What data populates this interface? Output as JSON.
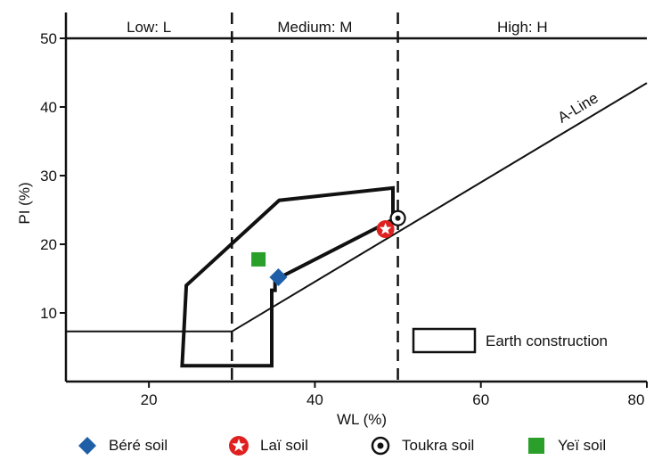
{
  "chart_data": {
    "type": "scatter",
    "title": "",
    "xlabel": "WL (%)",
    "ylabel": "PI (%)",
    "xlim": [
      10,
      80
    ],
    "ylim": [
      0,
      50
    ],
    "x_ticks": [
      "20",
      "40",
      "60",
      "80"
    ],
    "y_ticks": [
      "10",
      "20",
      "30",
      "40",
      "50"
    ],
    "zones": [
      {
        "label": "Low: L",
        "x_range": [
          10,
          30
        ]
      },
      {
        "label": "Medium: M",
        "x_range": [
          30,
          50
        ]
      },
      {
        "label": "High: H",
        "x_range": [
          50,
          80
        ]
      }
    ],
    "zone_boundaries": [
      30,
      50
    ],
    "a_line": {
      "label": "A-Line",
      "points": [
        [
          10,
          7.3
        ],
        [
          30,
          7.3
        ],
        [
          80,
          43.5
        ]
      ]
    },
    "earth_construction": {
      "label": "Earth construction",
      "polygon": [
        [
          24.5,
          14
        ],
        [
          35.7,
          26.4
        ],
        [
          49.4,
          28.2
        ],
        [
          49.4,
          23.6
        ],
        [
          35.2,
          14.8
        ],
        [
          35.2,
          13.3
        ],
        [
          34.8,
          13.3
        ],
        [
          34.8,
          2.3
        ],
        [
          24,
          2.3
        ]
      ]
    },
    "series": [
      {
        "name": "Béré soil",
        "x": [
          35.6
        ],
        "y": [
          15.2
        ],
        "marker": "diamond",
        "color": "#1f5fa8"
      },
      {
        "name": "Laï soil",
        "x": [
          48.5
        ],
        "y": [
          22.2
        ],
        "marker": "star",
        "color": "#e02020"
      },
      {
        "name": "Toukra soil",
        "x": [
          50
        ],
        "y": [
          23.8
        ],
        "marker": "dotted-circle",
        "color": "#111111"
      },
      {
        "name": "Yeï soil",
        "x": [
          33.2
        ],
        "y": [
          17.8
        ],
        "marker": "square",
        "color": "#2aa02a"
      }
    ],
    "legend_position": "bottom",
    "grid": false
  }
}
